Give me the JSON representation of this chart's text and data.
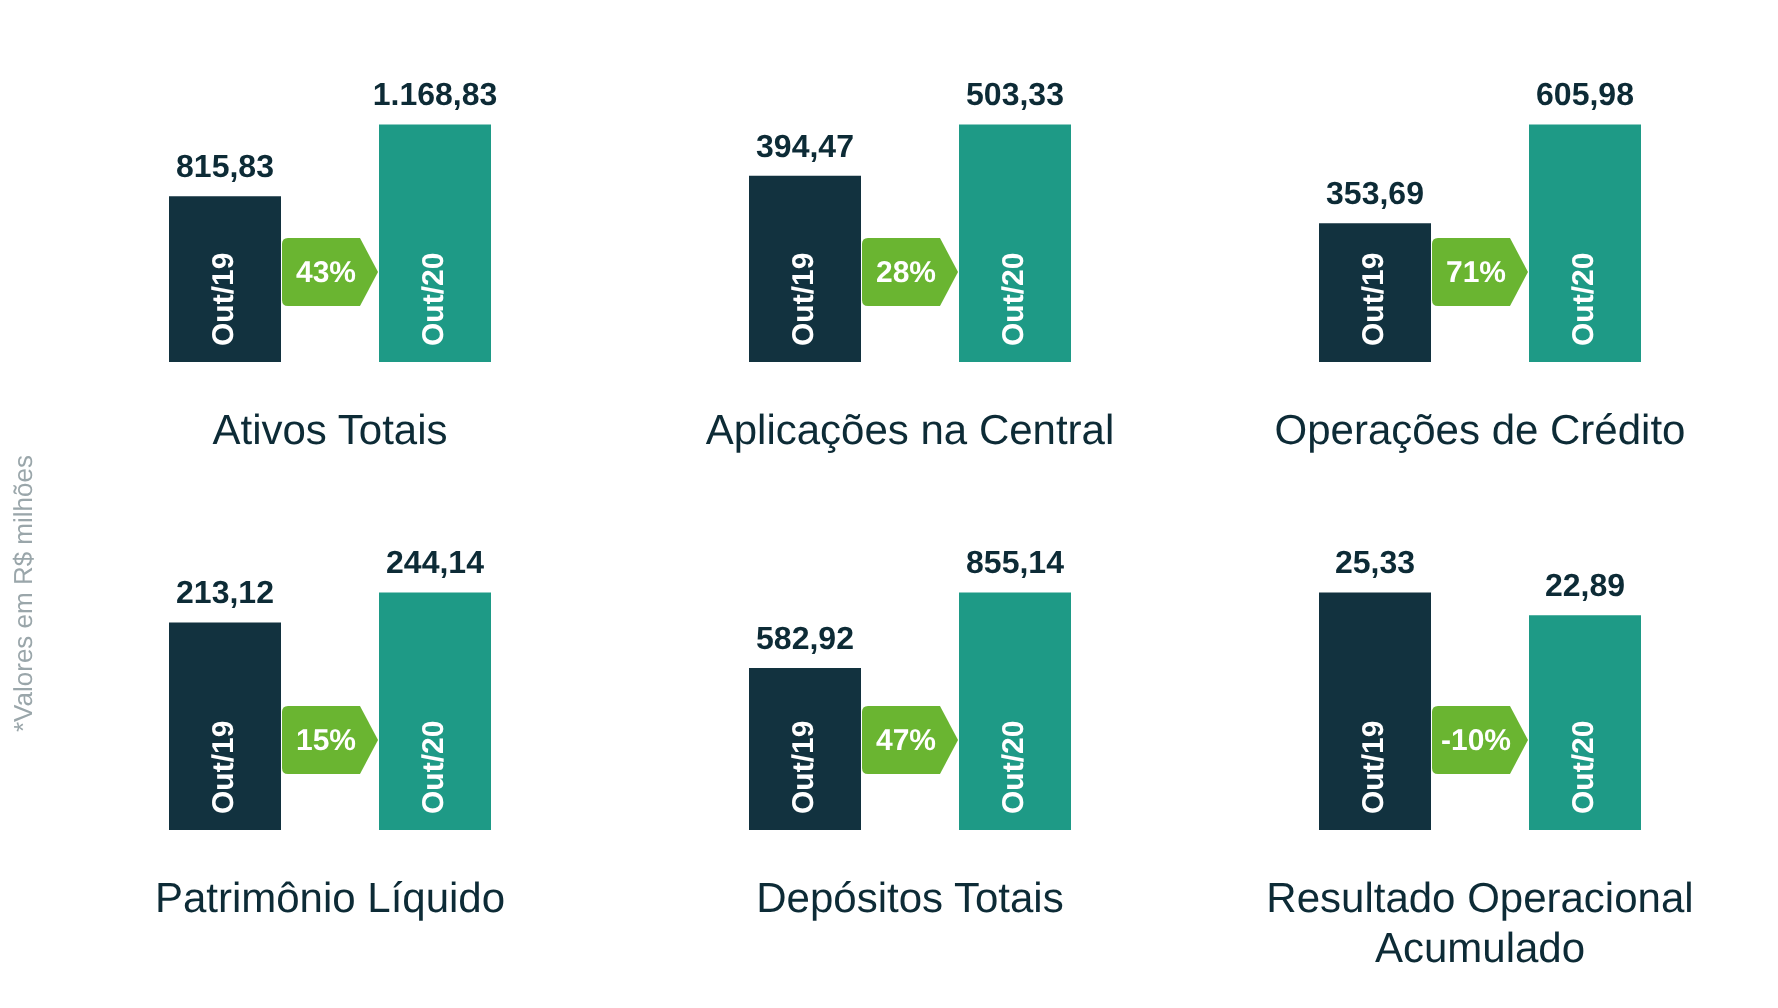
{
  "chart_data": [
    {
      "type": "bar",
      "title": "Ativos Totais",
      "categories": [
        "Out/19",
        "Out/20"
      ],
      "values": [
        815.83,
        1168.83
      ],
      "colors": [
        "#12323f",
        "#1e9a86"
      ],
      "value_labels": [
        "815,83",
        "1.168,83"
      ],
      "annotations": [
        "43%",
        "*Valores em R$ milhões"
      ]
    },
    {
      "type": "bar",
      "title": "Aplicações na Central",
      "categories": [
        "Out/19",
        "Out/20"
      ],
      "values": [
        394.47,
        503.33
      ],
      "colors": [
        "#12323f",
        "#1e9a86"
      ],
      "value_labels": [
        "394,47",
        "503,33"
      ],
      "annotations": [
        "28%"
      ]
    },
    {
      "type": "bar",
      "title": "Operações de Crédito",
      "categories": [
        "Out/19",
        "Out/20"
      ],
      "values": [
        353.69,
        605.98
      ],
      "colors": [
        "#12323f",
        "#1e9a86"
      ],
      "value_labels": [
        "353,69",
        "605,98"
      ],
      "annotations": [
        "71%"
      ]
    },
    {
      "type": "bar",
      "title": "Patrimônio Líquido",
      "categories": [
        "Out/19",
        "Out/20"
      ],
      "values": [
        213.12,
        244.14
      ],
      "colors": [
        "#12323f",
        "#1e9a86"
      ],
      "value_labels": [
        "213,12",
        "244,14"
      ],
      "annotations": [
        "15%"
      ]
    },
    {
      "type": "bar",
      "title": "Depósitos Totais",
      "categories": [
        "Out/19",
        "Out/20"
      ],
      "values": [
        582.92,
        855.14
      ],
      "colors": [
        "#12323f",
        "#1e9a86"
      ],
      "value_labels": [
        "582,92",
        "855,14"
      ],
      "annotations": [
        "47%"
      ]
    },
    {
      "type": "bar",
      "title": "Resultado Operacional Acumulado",
      "categories": [
        "Out/19",
        "Out/20"
      ],
      "values": [
        25.33,
        22.89
      ],
      "colors": [
        "#12323f",
        "#1e9a86"
      ],
      "value_labels": [
        "25,33",
        "22,89"
      ],
      "annotations": [
        "-10%"
      ]
    }
  ]
}
